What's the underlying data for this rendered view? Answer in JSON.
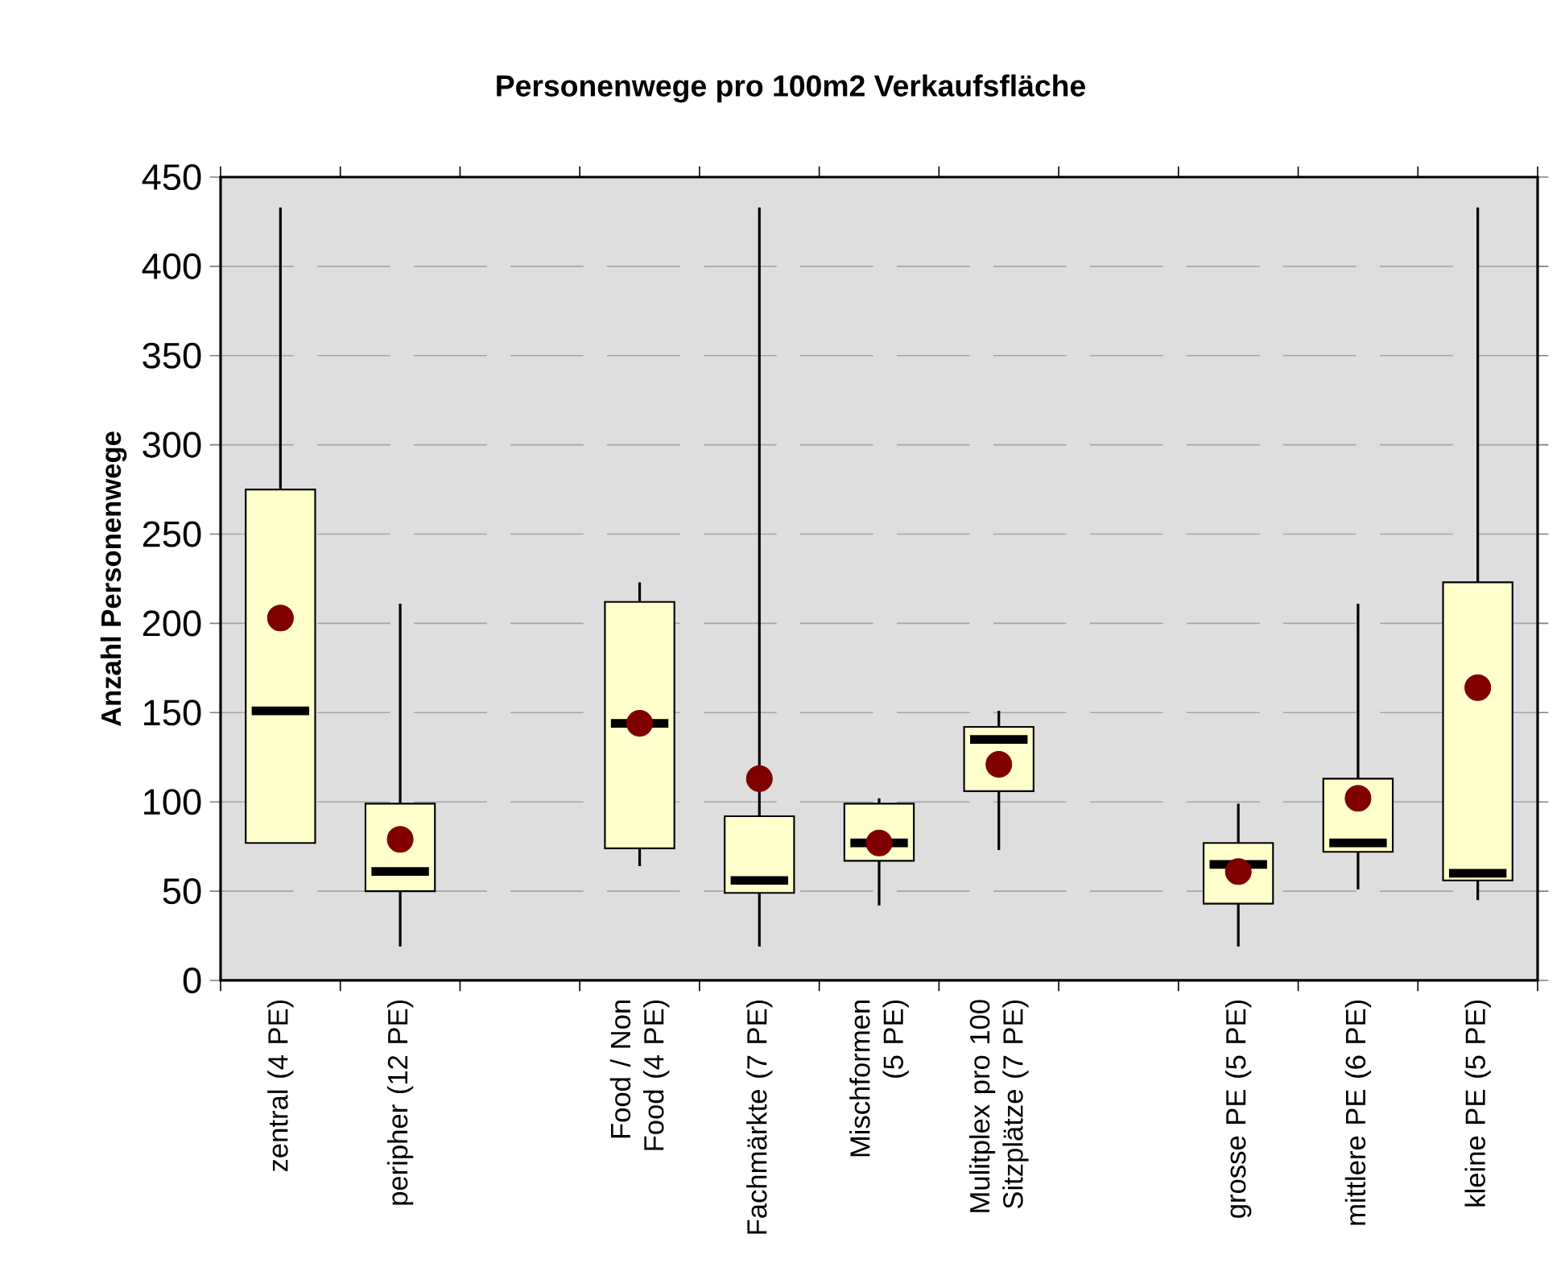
{
  "chart_data": {
    "type": "box",
    "title": "Personenwege pro 100m2 Verkaufsfläche",
    "ylabel": "Anzahl Personenwege",
    "categories": [
      "zentral (4 PE)",
      "peripher (12 PE)",
      null,
      "Food / Non Food (4 PE)",
      "Fachmärkte (7 PE)",
      "Mischformen (5 PE)",
      "Mulitplex pro 100 Sitzplätze (7 PE)",
      null,
      "grosse PE (5 PE)",
      "mittlere PE (6 PE)",
      "kleine PE (5 PE)"
    ],
    "series": [
      {
        "color": "#ffffcc",
        "boxes": [
          {
            "low": 77,
            "q1": 77,
            "median": 151,
            "q3": 275,
            "high": 433,
            "mean": 203
          },
          {
            "low": 19,
            "q1": 50,
            "median": 61,
            "q3": 99,
            "high": 211,
            "mean": 79
          },
          null,
          {
            "low": 64,
            "q1": 74,
            "median": 144,
            "q3": 212,
            "high": 223,
            "mean": 144
          },
          {
            "low": 19,
            "q1": 49,
            "median": 56,
            "q3": 92,
            "high": 433,
            "mean": 113
          },
          {
            "low": 42,
            "q1": 67,
            "median": 77,
            "q3": 99,
            "high": 102,
            "mean": 77
          },
          {
            "low": 73,
            "q1": 106,
            "median": 135,
            "q3": 142,
            "high": 151,
            "mean": 121
          },
          null,
          {
            "low": 19,
            "q1": 43,
            "median": 65,
            "q3": 77,
            "high": 99,
            "mean": 61
          },
          {
            "low": 51,
            "q1": 72,
            "median": 77,
            "q3": 113,
            "high": 211,
            "mean": 102
          },
          {
            "low": 45,
            "q1": 56,
            "median": 60,
            "q3": 223,
            "high": 433,
            "mean": 164
          }
        ]
      }
    ],
    "ylim": [
      0,
      450
    ],
    "yticks": [
      0,
      50,
      100,
      150,
      200,
      250,
      300,
      350,
      400,
      450
    ],
    "grid": "y"
  }
}
